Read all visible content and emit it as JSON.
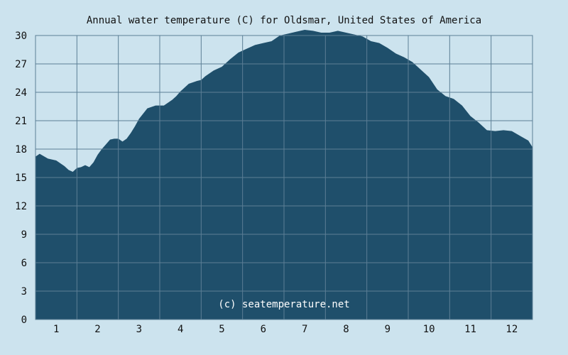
{
  "chart_data": {
    "type": "area",
    "title": "Annual water temperature (C) for Oldsmar, United States of America",
    "xlabel": "",
    "ylabel": "",
    "watermark": "(c) seatemperature.net",
    "x_tick_labels": [
      "1",
      "2",
      "3",
      "4",
      "5",
      "6",
      "7",
      "8",
      "9",
      "10",
      "11",
      "12"
    ],
    "y_ticks": [
      0,
      3,
      6,
      9,
      12,
      15,
      18,
      21,
      24,
      27,
      30
    ],
    "ylim": [
      0,
      30
    ],
    "xlim": [
      0.5,
      12.5
    ],
    "grid": true,
    "colors": {
      "background": "#cce3ee",
      "fill": "#1f4f6b",
      "grid": "#5c7f96"
    },
    "series": [
      {
        "x": [
          0.5,
          0.6,
          0.8,
          1.0,
          1.1,
          1.2,
          1.3,
          1.4,
          1.5,
          1.6,
          1.7,
          1.8,
          1.9,
          2.0,
          2.1,
          2.2,
          2.3,
          2.4,
          2.5,
          2.6,
          2.7,
          2.8,
          2.9,
          3.0,
          3.2,
          3.4,
          3.6,
          3.8,
          3.9,
          4.0,
          4.2,
          4.4,
          4.5,
          4.6,
          4.8,
          5.0,
          5.2,
          5.4,
          5.6,
          5.8,
          6.0,
          6.2,
          6.4,
          6.6,
          6.8,
          7.0,
          7.2,
          7.4,
          7.6,
          7.8,
          8.0,
          8.2,
          8.4,
          8.6,
          8.8,
          9.0,
          9.2,
          9.4,
          9.6,
          9.8,
          10.0,
          10.2,
          10.4,
          10.6,
          10.8,
          11.0,
          11.2,
          11.4,
          11.6,
          11.8,
          12.0,
          12.2,
          12.4,
          12.5
        ],
        "y": [
          17.2,
          17.5,
          17.0,
          16.8,
          16.5,
          16.2,
          15.8,
          15.6,
          16.0,
          16.1,
          16.3,
          16.1,
          16.6,
          17.4,
          18.0,
          18.5,
          19.0,
          19.1,
          19.1,
          18.8,
          19.1,
          19.7,
          20.4,
          21.2,
          22.3,
          22.6,
          22.6,
          23.2,
          23.6,
          24.1,
          24.9,
          25.2,
          25.3,
          25.7,
          26.3,
          26.7,
          27.5,
          28.2,
          28.6,
          29.0,
          29.2,
          29.4,
          30.0,
          30.2,
          30.4,
          30.6,
          30.5,
          30.3,
          30.3,
          30.5,
          30.3,
          30.1,
          29.9,
          29.4,
          29.2,
          28.7,
          28.1,
          27.7,
          27.2,
          26.4,
          25.6,
          24.3,
          23.6,
          23.3,
          22.6,
          21.5,
          20.8,
          20.0,
          19.9,
          20.0,
          19.9,
          19.4,
          18.9,
          18.2
        ]
      }
    ]
  }
}
